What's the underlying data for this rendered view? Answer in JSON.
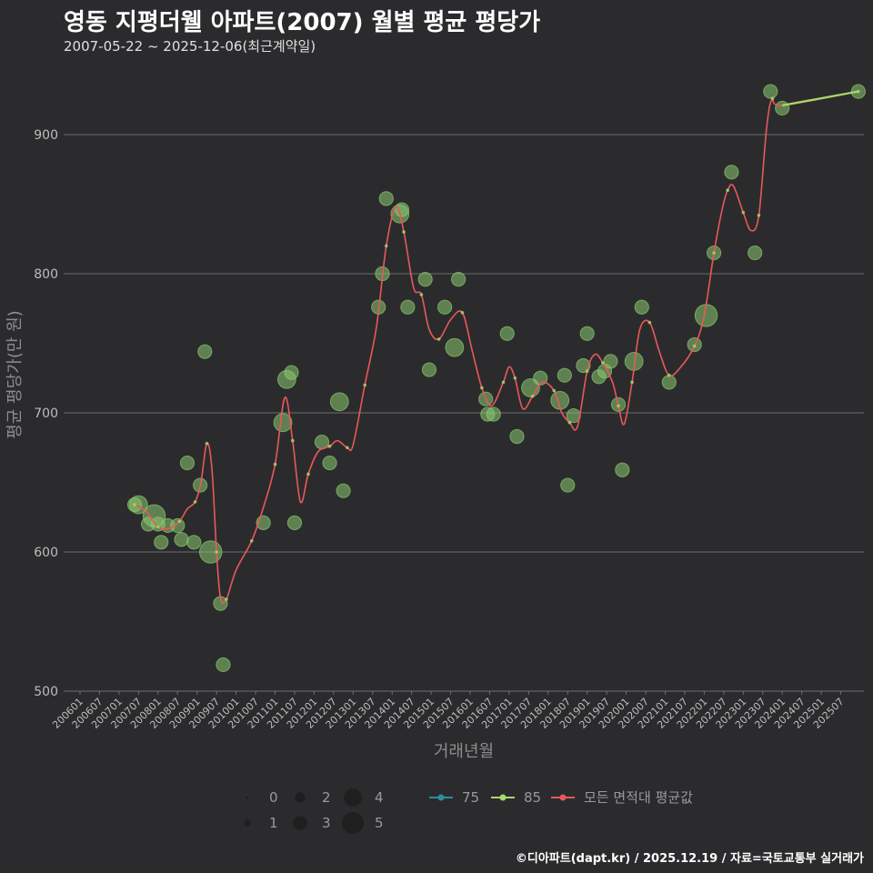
{
  "title": "영동 지평더웰 아파트(2007) 월별 평균 평당가",
  "subtitle": "2007-05-22 ~ 2025-12-06(최근계약일)",
  "credit": "©디아파트(dapt.kr) / 2025.12.19 / 자료=국토교통부 실거래가",
  "colors": {
    "background": "#2b2b2d",
    "grid": "#6e6e6e",
    "series75": "#2a8ea0",
    "series85": "#a8d86e",
    "average": "#e8585a",
    "bubble": "#8bc96f"
  },
  "legend": {
    "size_labels": [
      "0",
      "1",
      "2",
      "3",
      "4",
      "5"
    ],
    "series_labels": [
      "75",
      "85",
      "모든 면적대 평균값"
    ]
  },
  "chart_data": {
    "type": "scatter",
    "title": "영동 지평더웰 아파트(2007) 월별 평균 평당가",
    "xlabel": "거래년월",
    "ylabel": "평균 평당가(만 원)",
    "ylim": [
      500,
      930
    ],
    "yticks": [
      500,
      600,
      700,
      800,
      900
    ],
    "xlim": [
      2006.0,
      2026.3
    ],
    "xtick_labels": [
      "200601",
      "200607",
      "200701",
      "200707",
      "200801",
      "200807",
      "200901",
      "200907",
      "201001",
      "201007",
      "201101",
      "201107",
      "201201",
      "201207",
      "201301",
      "201307",
      "201401",
      "201407",
      "201501",
      "201507",
      "201601",
      "201607",
      "201701",
      "201707",
      "201801",
      "201807",
      "201901",
      "201907",
      "202001",
      "202007",
      "202101",
      "202107",
      "202201",
      "202207",
      "202301",
      "202307",
      "202401",
      "202407",
      "202501",
      "202507"
    ],
    "grid": "horizontal",
    "series": [
      {
        "name": "85",
        "points": [
          {
            "t": 2007.4,
            "v": 634,
            "size": 2
          },
          {
            "t": 2007.5,
            "v": 634,
            "size": 3
          },
          {
            "t": 2007.75,
            "v": 620,
            "size": 2
          },
          {
            "t": 2007.9,
            "v": 626,
            "size": 4
          },
          {
            "t": 2008.0,
            "v": 620,
            "size": 2
          },
          {
            "t": 2008.08,
            "v": 607,
            "size": 2
          },
          {
            "t": 2008.25,
            "v": 619,
            "size": 2
          },
          {
            "t": 2008.5,
            "v": 619,
            "size": 2
          },
          {
            "t": 2008.6,
            "v": 609,
            "size": 2
          },
          {
            "t": 2008.75,
            "v": 664,
            "size": 2
          },
          {
            "t": 2008.92,
            "v": 607,
            "size": 2
          },
          {
            "t": 2009.08,
            "v": 648,
            "size": 2
          },
          {
            "t": 2009.2,
            "v": 744,
            "size": 2
          },
          {
            "t": 2009.35,
            "v": 600,
            "size": 4
          },
          {
            "t": 2009.6,
            "v": 563,
            "size": 2
          },
          {
            "t": 2009.67,
            "v": 519,
            "size": 2
          },
          {
            "t": 2010.7,
            "v": 621,
            "size": 2
          },
          {
            "t": 2011.2,
            "v": 693,
            "size": 3
          },
          {
            "t": 2011.3,
            "v": 724,
            "size": 3
          },
          {
            "t": 2011.42,
            "v": 729,
            "size": 2
          },
          {
            "t": 2011.5,
            "v": 621,
            "size": 2
          },
          {
            "t": 2012.2,
            "v": 679,
            "size": 2
          },
          {
            "t": 2012.4,
            "v": 664,
            "size": 2
          },
          {
            "t": 2012.65,
            "v": 708,
            "size": 3
          },
          {
            "t": 2012.75,
            "v": 644,
            "size": 2
          },
          {
            "t": 2013.65,
            "v": 776,
            "size": 2
          },
          {
            "t": 2013.75,
            "v": 800,
            "size": 2
          },
          {
            "t": 2013.85,
            "v": 854,
            "size": 2
          },
          {
            "t": 2014.2,
            "v": 843,
            "size": 3
          },
          {
            "t": 2014.25,
            "v": 846,
            "size": 2
          },
          {
            "t": 2014.4,
            "v": 776,
            "size": 2
          },
          {
            "t": 2014.85,
            "v": 796,
            "size": 2
          },
          {
            "t": 2014.95,
            "v": 731,
            "size": 2
          },
          {
            "t": 2015.35,
            "v": 776,
            "size": 2
          },
          {
            "t": 2015.6,
            "v": 747,
            "size": 3
          },
          {
            "t": 2015.7,
            "v": 796,
            "size": 2
          },
          {
            "t": 2016.4,
            "v": 710,
            "size": 2
          },
          {
            "t": 2016.45,
            "v": 699,
            "size": 2
          },
          {
            "t": 2016.6,
            "v": 699,
            "size": 2
          },
          {
            "t": 2016.95,
            "v": 757,
            "size": 2
          },
          {
            "t": 2017.2,
            "v": 683,
            "size": 2
          },
          {
            "t": 2017.55,
            "v": 718,
            "size": 3
          },
          {
            "t": 2017.8,
            "v": 725,
            "size": 2
          },
          {
            "t": 2018.3,
            "v": 709,
            "size": 3
          },
          {
            "t": 2018.42,
            "v": 727,
            "size": 2
          },
          {
            "t": 2018.5,
            "v": 648,
            "size": 2
          },
          {
            "t": 2018.65,
            "v": 698,
            "size": 2
          },
          {
            "t": 2018.9,
            "v": 734,
            "size": 2
          },
          {
            "t": 2019.0,
            "v": 757,
            "size": 2
          },
          {
            "t": 2019.3,
            "v": 726,
            "size": 2
          },
          {
            "t": 2019.45,
            "v": 730,
            "size": 2
          },
          {
            "t": 2019.6,
            "v": 737,
            "size": 2
          },
          {
            "t": 2019.8,
            "v": 706,
            "size": 2
          },
          {
            "t": 2019.9,
            "v": 659,
            "size": 2
          },
          {
            "t": 2020.2,
            "v": 737,
            "size": 3
          },
          {
            "t": 2020.4,
            "v": 776,
            "size": 2
          },
          {
            "t": 2021.1,
            "v": 722,
            "size": 2
          },
          {
            "t": 2021.75,
            "v": 749,
            "size": 2
          },
          {
            "t": 2022.05,
            "v": 770,
            "size": 4
          },
          {
            "t": 2022.25,
            "v": 815,
            "size": 2
          },
          {
            "t": 2022.7,
            "v": 873,
            "size": 2
          },
          {
            "t": 2023.3,
            "v": 815,
            "size": 2
          },
          {
            "t": 2023.7,
            "v": 931,
            "size": 2
          },
          {
            "t": 2024.0,
            "v": 919,
            "size": 2
          },
          {
            "t": 2025.95,
            "v": 931,
            "size": 2
          }
        ]
      }
    ],
    "average_line": [
      [
        2007.4,
        634
      ],
      [
        2007.7,
        629
      ],
      [
        2008.0,
        618
      ],
      [
        2008.3,
        617
      ],
      [
        2008.55,
        622
      ],
      [
        2008.75,
        631
      ],
      [
        2008.95,
        636
      ],
      [
        2009.1,
        650
      ],
      [
        2009.25,
        678
      ],
      [
        2009.38,
        660
      ],
      [
        2009.5,
        600
      ],
      [
        2009.6,
        567
      ],
      [
        2009.75,
        566
      ],
      [
        2010.0,
        587
      ],
      [
        2010.4,
        608
      ],
      [
        2010.7,
        632
      ],
      [
        2011.0,
        663
      ],
      [
        2011.25,
        711
      ],
      [
        2011.45,
        680
      ],
      [
        2011.65,
        636
      ],
      [
        2011.85,
        656
      ],
      [
        2012.1,
        672
      ],
      [
        2012.4,
        676
      ],
      [
        2012.6,
        680
      ],
      [
        2012.85,
        675
      ],
      [
        2013.0,
        677
      ],
      [
        2013.3,
        720
      ],
      [
        2013.6,
        762
      ],
      [
        2013.85,
        820
      ],
      [
        2014.1,
        848
      ],
      [
        2014.3,
        830
      ],
      [
        2014.55,
        790
      ],
      [
        2014.75,
        785
      ],
      [
        2014.95,
        760
      ],
      [
        2015.2,
        753
      ],
      [
        2015.5,
        767
      ],
      [
        2015.8,
        772
      ],
      [
        2016.05,
        745
      ],
      [
        2016.3,
        718
      ],
      [
        2016.55,
        705
      ],
      [
        2016.85,
        722
      ],
      [
        2017.0,
        733
      ],
      [
        2017.15,
        725
      ],
      [
        2017.35,
        703
      ],
      [
        2017.6,
        712
      ],
      [
        2017.85,
        722
      ],
      [
        2018.15,
        716
      ],
      [
        2018.35,
        700
      ],
      [
        2018.55,
        693
      ],
      [
        2018.75,
        690
      ],
      [
        2019.0,
        730
      ],
      [
        2019.2,
        742
      ],
      [
        2019.4,
        736
      ],
      [
        2019.65,
        722
      ],
      [
        2019.8,
        705
      ],
      [
        2019.95,
        692
      ],
      [
        2020.15,
        722
      ],
      [
        2020.35,
        760
      ],
      [
        2020.6,
        765
      ],
      [
        2020.85,
        744
      ],
      [
        2021.1,
        727
      ],
      [
        2021.4,
        733
      ],
      [
        2021.75,
        748
      ],
      [
        2022.0,
        770
      ],
      [
        2022.25,
        815
      ],
      [
        2022.45,
        845
      ],
      [
        2022.6,
        860
      ],
      [
        2022.75,
        863
      ],
      [
        2023.0,
        844
      ],
      [
        2023.2,
        831
      ],
      [
        2023.4,
        842
      ],
      [
        2023.6,
        905
      ],
      [
        2023.75,
        926
      ],
      [
        2024.0,
        921
      ],
      [
        2025.95,
        931
      ]
    ]
  }
}
